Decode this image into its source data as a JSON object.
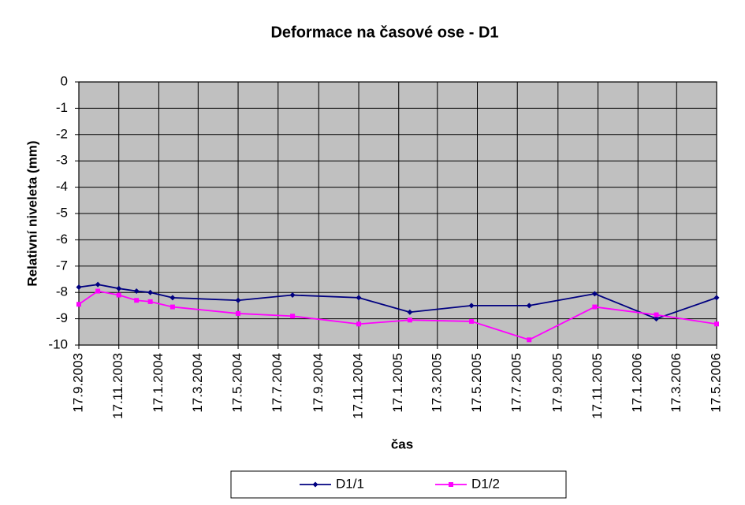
{
  "chart_data": {
    "type": "line",
    "title": "Deformace na časové ose - D1",
    "x_label": "čas",
    "y_label": "Relativní niveleta (mm)",
    "x": [
      "2003-09-17",
      "2003-10-16",
      "2003-11-17",
      "2003-12-14",
      "2004-01-04",
      "2004-02-07",
      "2004-05-17",
      "2004-08-08",
      "2004-11-17",
      "2005-02-03",
      "2005-05-08",
      "2005-08-04",
      "2005-11-12",
      "2006-02-14",
      "2006-05-17"
    ],
    "series": [
      {
        "name": "D1/1",
        "color": "#000080",
        "marker": "diamond",
        "values": [
          -7.8,
          -7.7,
          -7.85,
          -7.95,
          -8.0,
          -8.2,
          -8.3,
          -8.1,
          -8.2,
          -8.75,
          -8.5,
          -8.5,
          -8.05,
          -9.0,
          -8.2
        ]
      },
      {
        "name": "D1/2",
        "color": "#ff00ff",
        "marker": "square",
        "values": [
          -8.45,
          -7.95,
          -8.1,
          -8.3,
          -8.35,
          -8.55,
          -8.8,
          -8.9,
          -9.2,
          -9.05,
          -9.1,
          -9.8,
          -8.55,
          -8.85,
          -9.2
        ]
      }
    ],
    "xlim": [
      "2003-09-17",
      "2006-05-17"
    ],
    "xticks": [
      {
        "value": "2003-09-17",
        "label": "17.9.2003"
      },
      {
        "value": "2003-11-17",
        "label": "17.11.2003"
      },
      {
        "value": "2004-01-17",
        "label": "17.1.2004"
      },
      {
        "value": "2004-03-17",
        "label": "17.3.2004"
      },
      {
        "value": "2004-05-17",
        "label": "17.5.2004"
      },
      {
        "value": "2004-07-17",
        "label": "17.7.2004"
      },
      {
        "value": "2004-09-17",
        "label": "17.9.2004"
      },
      {
        "value": "2004-11-17",
        "label": "17.11.2004"
      },
      {
        "value": "2005-01-17",
        "label": "17.1.2005"
      },
      {
        "value": "2005-03-17",
        "label": "17.3.2005"
      },
      {
        "value": "2005-05-17",
        "label": "17.5.2005"
      },
      {
        "value": "2005-07-17",
        "label": "17.7.2005"
      },
      {
        "value": "2005-09-17",
        "label": "17.9.2005"
      },
      {
        "value": "2005-11-17",
        "label": "17.11.2005"
      },
      {
        "value": "2006-01-17",
        "label": "17.1.2006"
      },
      {
        "value": "2006-03-17",
        "label": "17.3.2006"
      },
      {
        "value": "2006-05-17",
        "label": "17.5.2006"
      }
    ],
    "ylim": [
      -10,
      0
    ],
    "yticks": [
      0,
      -1,
      -2,
      -3,
      -4,
      -5,
      -6,
      -7,
      -8,
      -9,
      -10
    ],
    "grid": true,
    "legend": "bottom",
    "plot_background": "#c0c0c0"
  }
}
